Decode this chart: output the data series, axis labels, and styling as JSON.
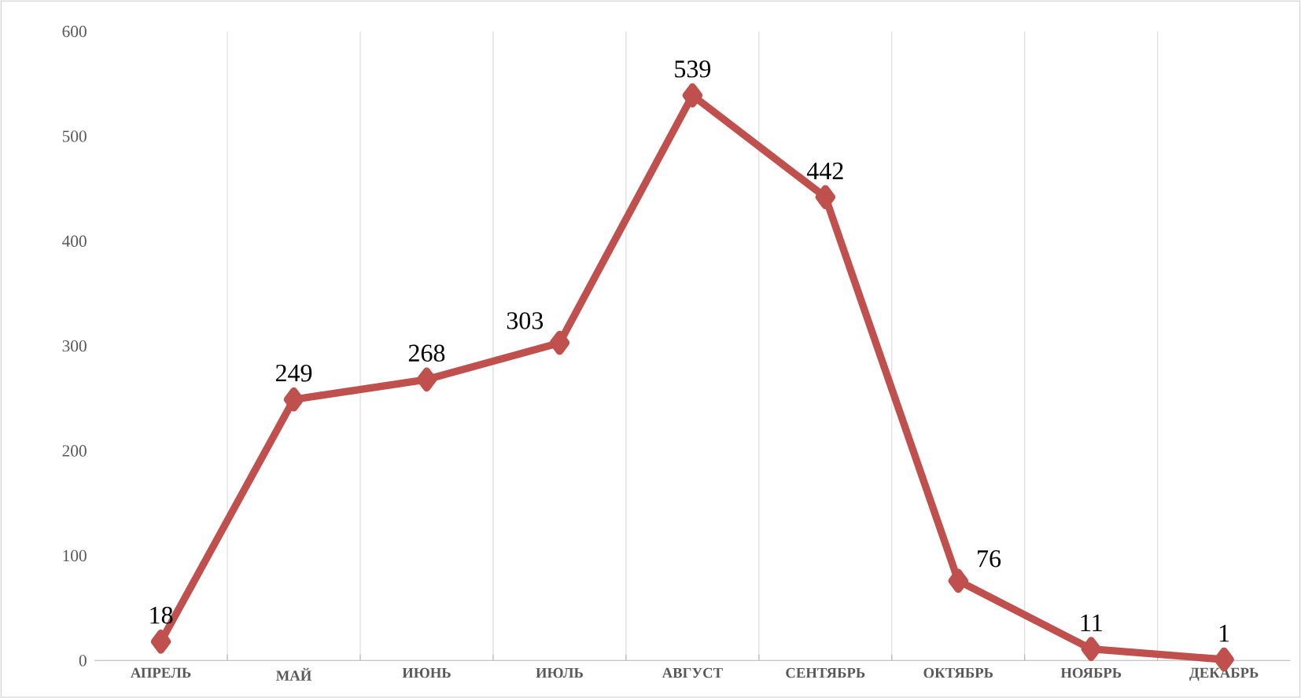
{
  "chart_data": {
    "type": "line",
    "categories": [
      "АПРЕЛЬ",
      "МАЙ",
      "ИЮНЬ",
      "ИЮЛЬ",
      "АВГУСТ",
      "СЕНТЯБРЬ",
      "ОКТЯБРЬ",
      "НОЯБРЬ",
      "ДЕКАБРЬ"
    ],
    "series": [
      {
        "color": "#c0504d",
        "values": [
          18,
          249,
          268,
          303,
          539,
          442,
          76,
          11,
          1
        ]
      }
    ],
    "ylim": [
      0,
      600
    ],
    "yticks": [
      0,
      100,
      200,
      300,
      400,
      500,
      600
    ],
    "grid": "x",
    "marker": "diamond",
    "line_style": "solid",
    "data_labels": true
  }
}
